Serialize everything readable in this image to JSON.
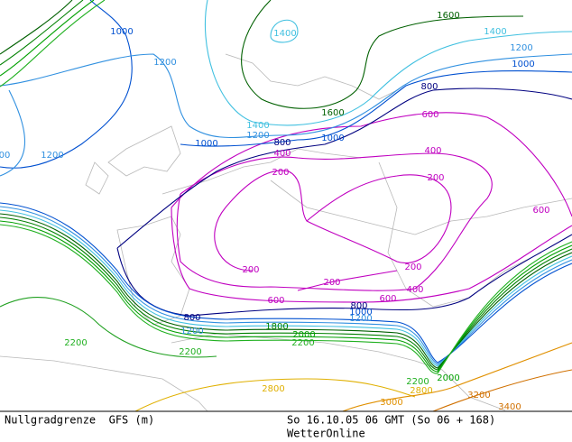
{
  "footer": {
    "title": "Nullgradgrenze  GFS (m)",
    "time": "So 16.10.05 06 GMT (So 06 + 168)",
    "source": "WetterOnline"
  },
  "contour_labels": [
    "1000",
    "1400",
    "1600",
    "1400",
    "1200",
    "1000",
    "1200",
    "800",
    "600",
    "1600",
    "1400",
    "1200",
    "1000",
    "800",
    "1000",
    "400",
    "400",
    "1200",
    "00",
    "200",
    "200",
    "600",
    "200",
    "200",
    "200",
    "400",
    "600",
    "600",
    "800",
    "800",
    "1000",
    "1200",
    "1200",
    "1800",
    "2000",
    "2200",
    "2200",
    "2200",
    "2000",
    "2200",
    "2800",
    "2800",
    "3000",
    "3200",
    "3400"
  ]
}
